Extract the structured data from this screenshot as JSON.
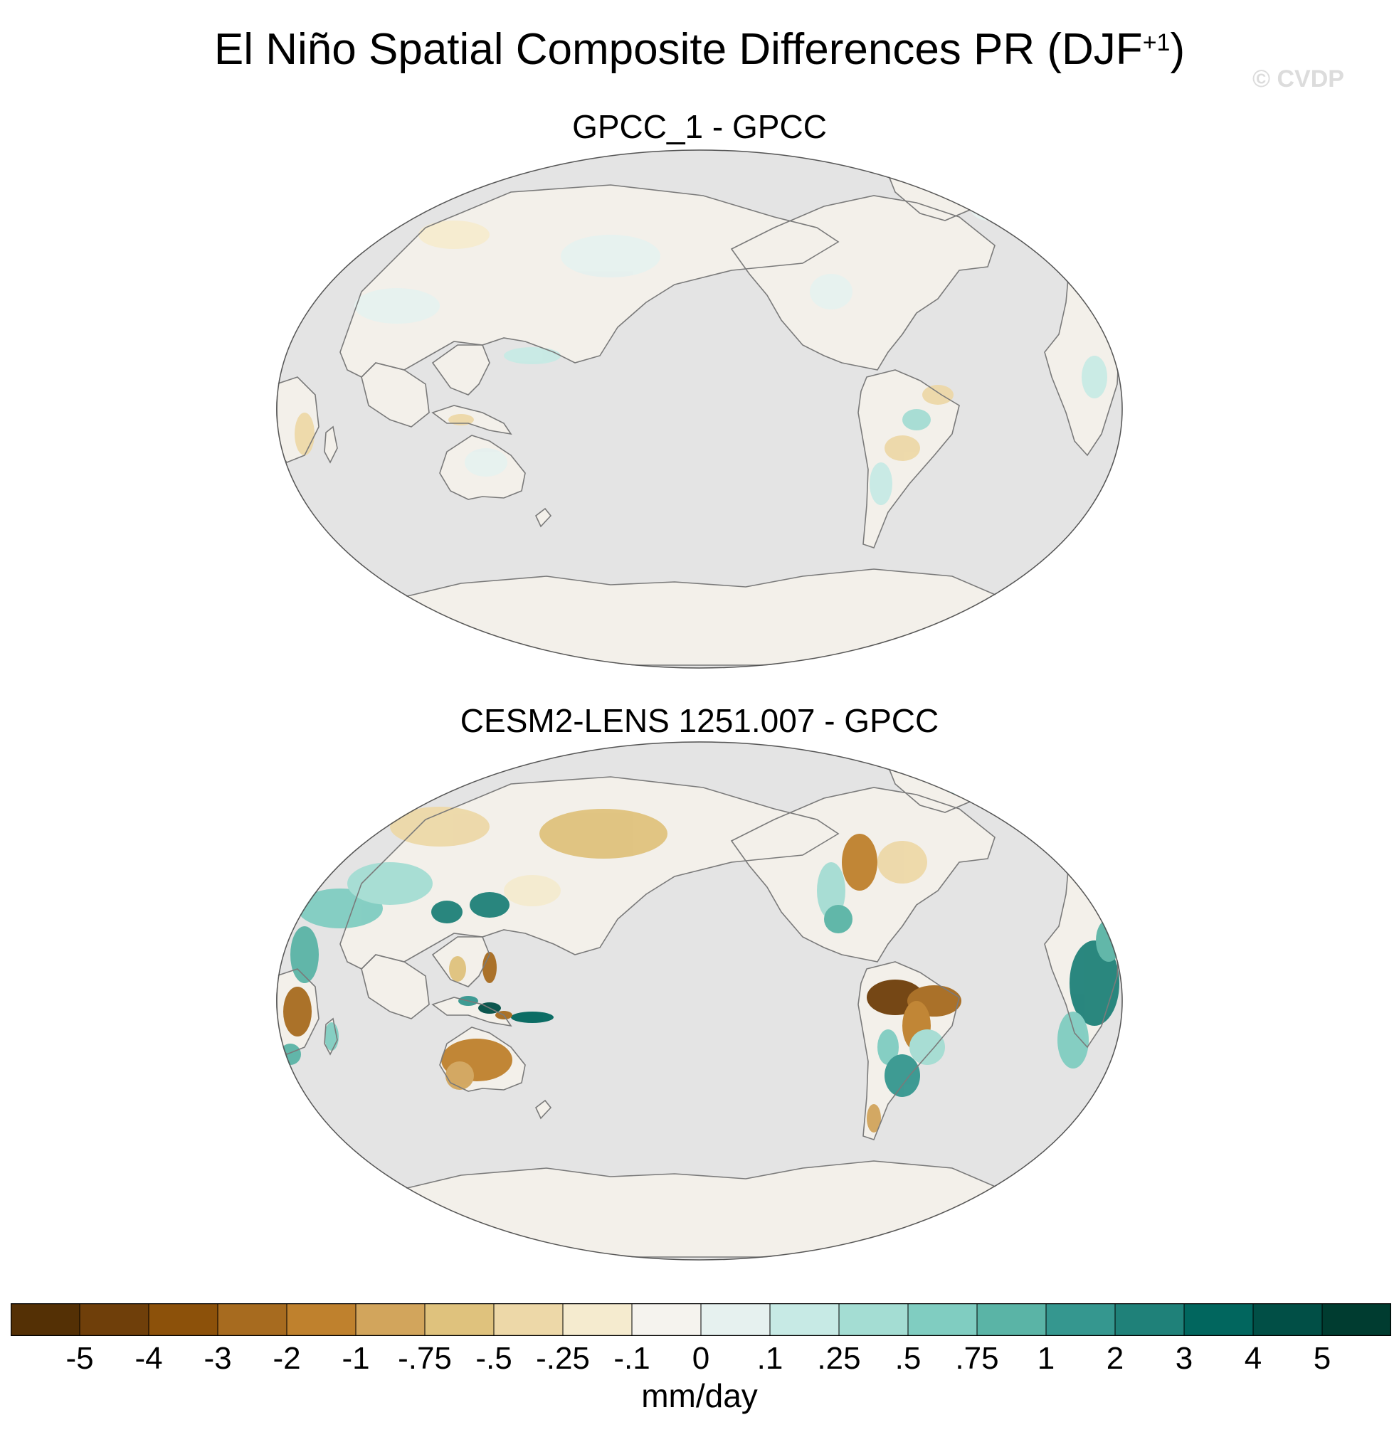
{
  "figure": {
    "title_main": "El Niño Spatial Composite Differences PR (DJF",
    "title_sup": "+1",
    "title_close": ")",
    "watermark": "© CVDP"
  },
  "panels": [
    {
      "title": "GPCC_1 - GPCC"
    },
    {
      "title": "CESM2-LENS 1251.007 - GPCC"
    }
  ],
  "map_style": {
    "ocean_color": "#e4e4e4",
    "land_color": "#f3f0ea",
    "coastline_color": "#7a7a7a"
  },
  "colorbar": {
    "units": "mm/day",
    "tick_labels": [
      "-5",
      "-4",
      "-3",
      "-2",
      "-1",
      "-.75",
      "-.5",
      "-.25",
      "-.1",
      "0",
      ".1",
      ".25",
      ".5",
      ".75",
      "1",
      "2",
      "3",
      "4",
      "5"
    ],
    "colors": [
      "#543005",
      "#6f3f0a",
      "#8c510a",
      "#a76b1f",
      "#bf812d",
      "#d2a55c",
      "#dfc27d",
      "#edd8a8",
      "#f5ebcf",
      "#f5f3ee",
      "#e6f1ef",
      "#c7eae5",
      "#a4ddd3",
      "#80cdc1",
      "#5ab4a6",
      "#35978f",
      "#1f8179",
      "#01665e",
      "#014f46",
      "#003c30"
    ]
  }
}
